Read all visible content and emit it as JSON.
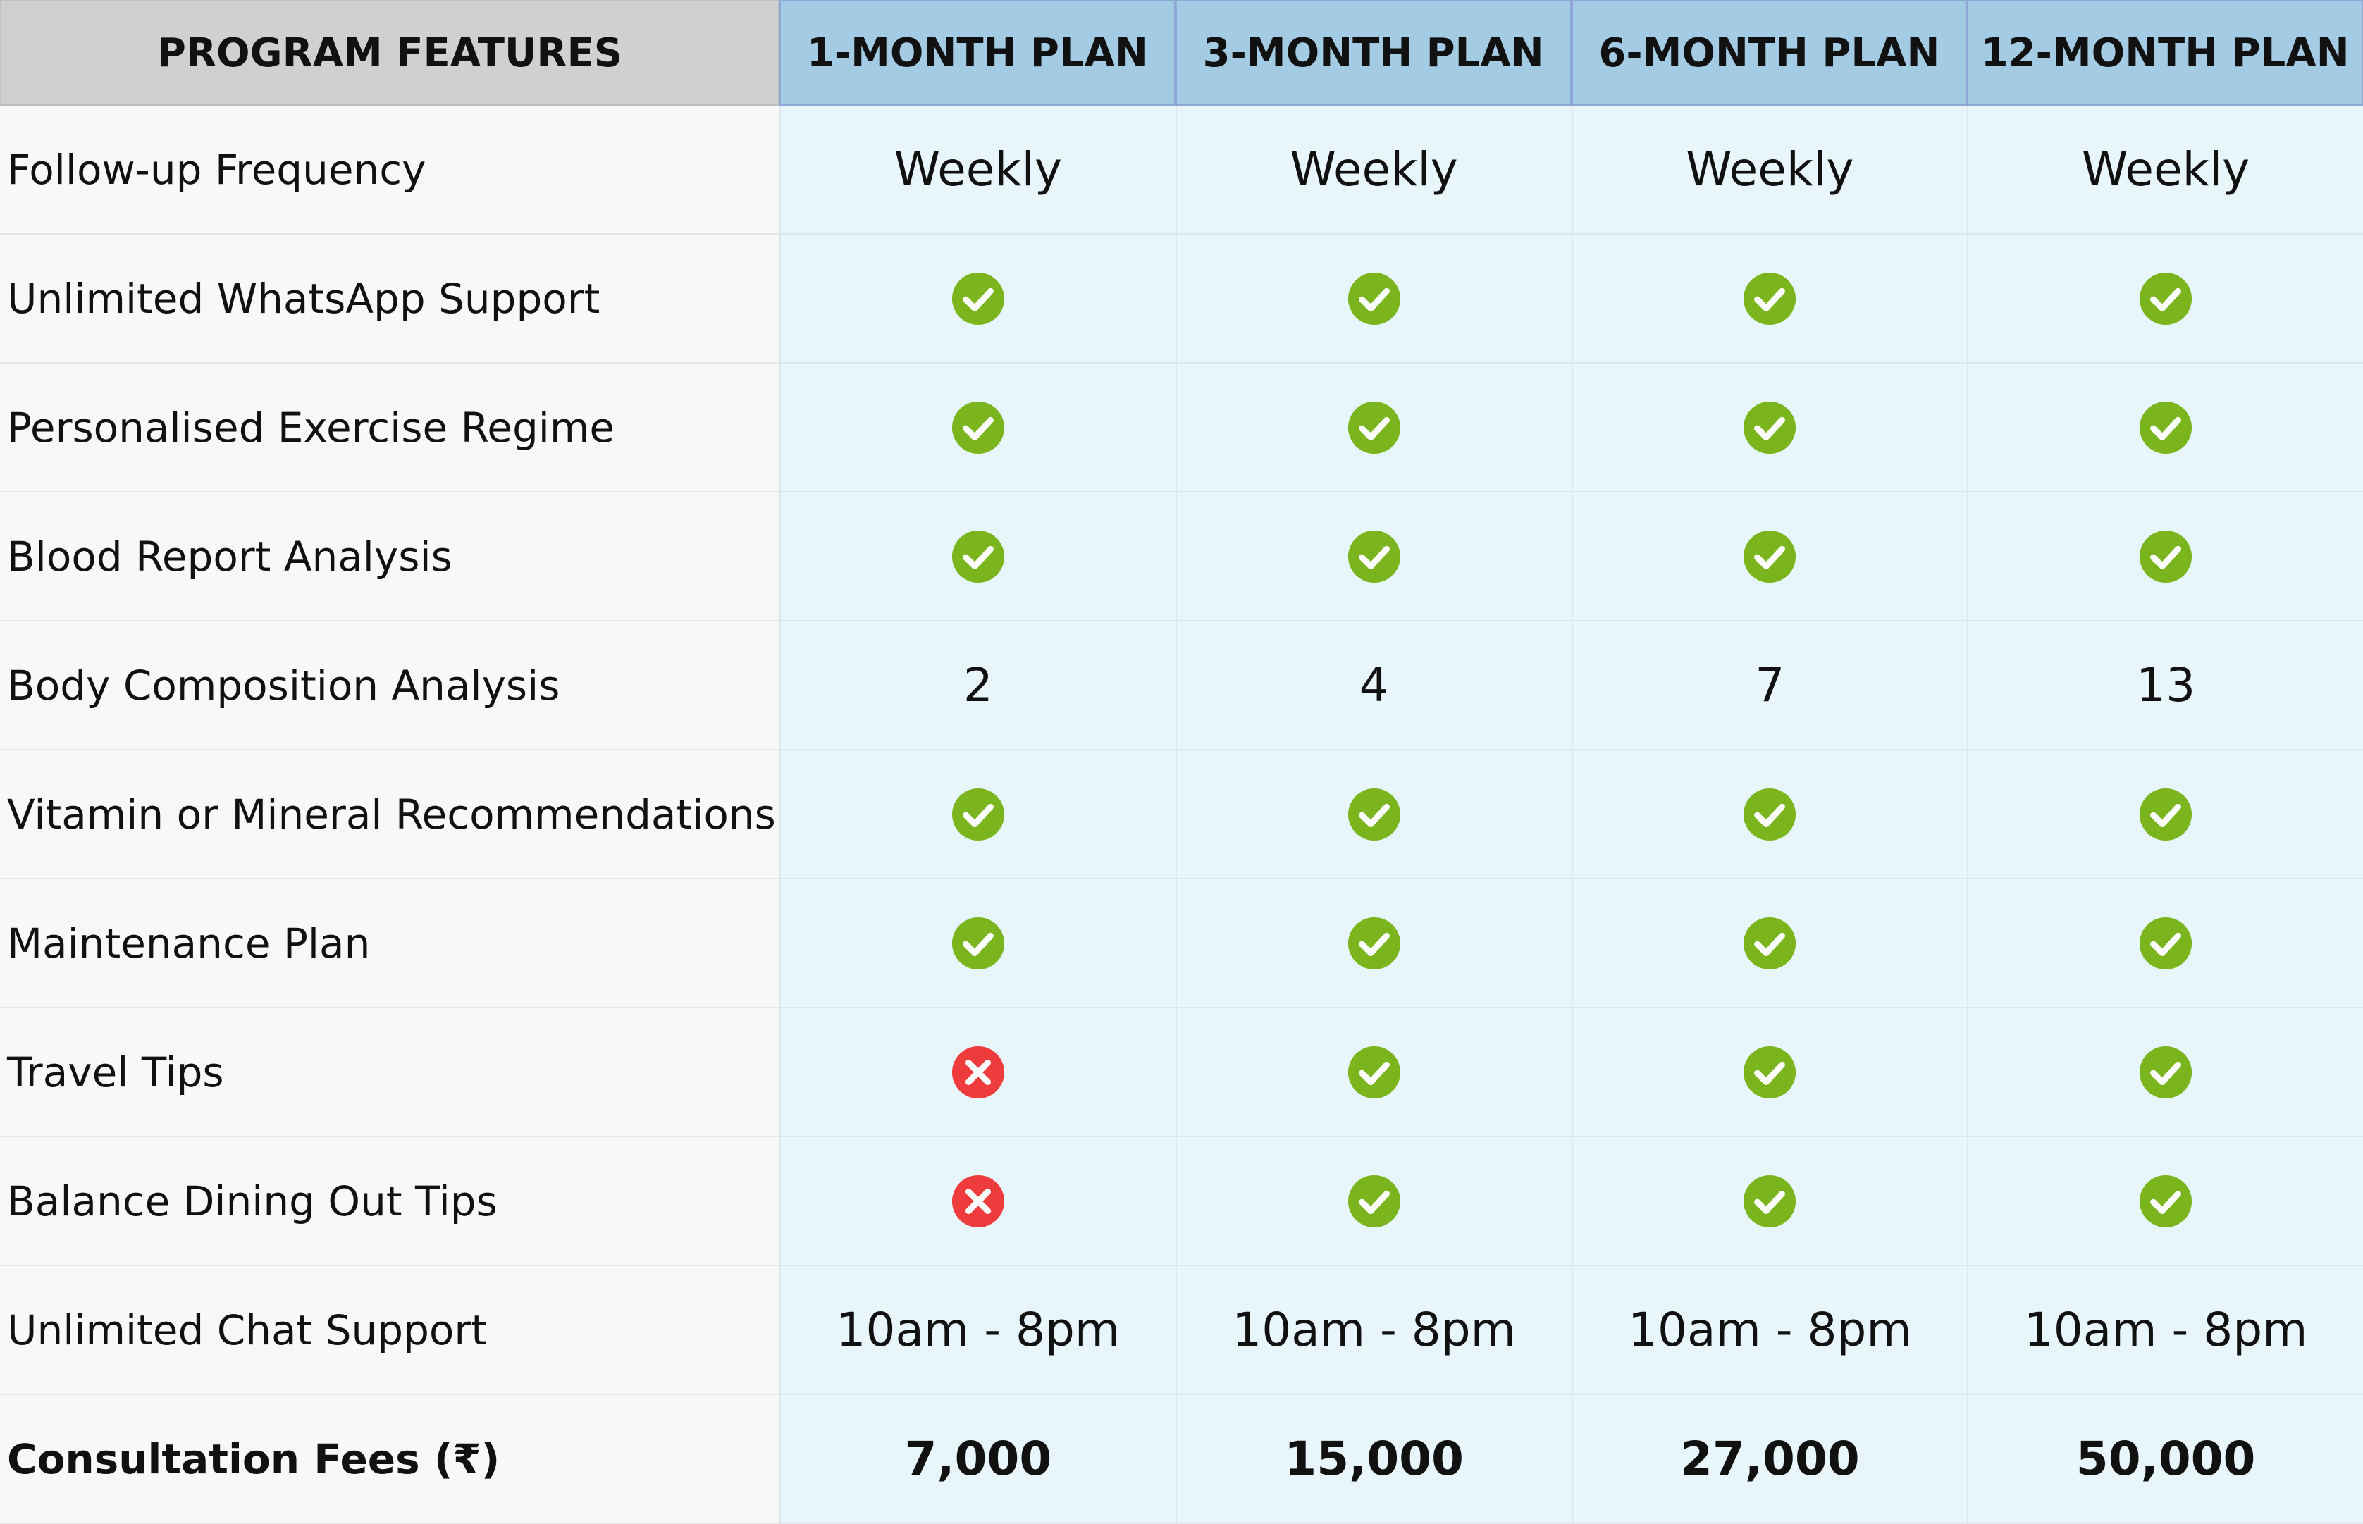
{
  "header": {
    "cells": [
      "PROGRAM FEATURES",
      "1-MONTH PLAN",
      "3-MONTH PLAN",
      "6-MONTH PLAN",
      "12-MONTH PLAN"
    ]
  },
  "rows": [
    {
      "feature": "Follow-up Frequency",
      "values": [
        "Weekly",
        "Weekly",
        "Weekly",
        "Weekly"
      ]
    },
    {
      "feature": "Unlimited WhatsApp Support",
      "values": [
        true,
        true,
        true,
        true
      ]
    },
    {
      "feature": "Personalised Exercise Regime",
      "values": [
        true,
        true,
        true,
        true
      ]
    },
    {
      "feature": "Blood Report Analysis",
      "values": [
        true,
        true,
        true,
        true
      ]
    },
    {
      "feature": "Body Composition Analysis",
      "values": [
        "2",
        "4",
        "7",
        "13"
      ]
    },
    {
      "feature": "Vitamin or Mineral Recommendations",
      "values": [
        true,
        true,
        true,
        true
      ]
    },
    {
      "feature": "Maintenance Plan",
      "values": [
        true,
        true,
        true,
        true
      ]
    },
    {
      "feature": "Travel Tips",
      "values": [
        false,
        true,
        true,
        true
      ]
    },
    {
      "feature": "Balance Dining Out Tips",
      "values": [
        false,
        true,
        true,
        true
      ]
    },
    {
      "feature": "Unlimited Chat Support",
      "values": [
        "10am - 8pm",
        "10am - 8pm",
        "10am - 8pm",
        "10am - 8pm"
      ]
    }
  ],
  "fees": {
    "feature": "Consultation Fees (₹)",
    "values": [
      "7,000",
      "15,000",
      "27,000",
      "50,000"
    ]
  }
}
